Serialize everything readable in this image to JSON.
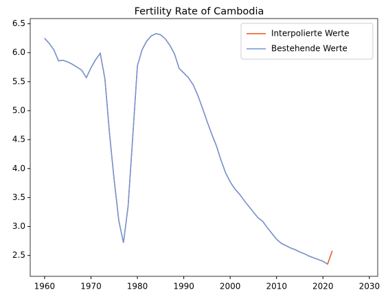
{
  "chart_data": {
    "type": "line",
    "title": "Fertility Rate of Cambodia",
    "x": [
      1960,
      1961,
      1962,
      1963,
      1964,
      1965,
      1966,
      1967,
      1968,
      1969,
      1970,
      1971,
      1972,
      1973,
      1974,
      1975,
      1976,
      1977,
      1978,
      1979,
      1980,
      1981,
      1982,
      1983,
      1984,
      1985,
      1986,
      1987,
      1988,
      1989,
      1990,
      1991,
      1992,
      1993,
      1994,
      1995,
      1996,
      1997,
      1998,
      1999,
      2000,
      2001,
      2002,
      2003,
      2004,
      2005,
      2006,
      2007,
      2008,
      2009,
      2010,
      2011,
      2012,
      2013,
      2014,
      2015,
      2016,
      2017,
      2018,
      2019,
      2020,
      2021,
      2022
    ],
    "series": [
      {
        "name": "Interpolierte Werte",
        "color": "#e8531f",
        "values": [
          6.25,
          6.16,
          6.05,
          5.86,
          5.87,
          5.84,
          5.8,
          5.75,
          5.7,
          5.57,
          5.74,
          5.88,
          5.99,
          5.55,
          4.6,
          3.8,
          3.1,
          2.72,
          3.35,
          4.55,
          5.77,
          6.05,
          6.2,
          6.29,
          6.33,
          6.31,
          6.24,
          6.13,
          5.98,
          5.73,
          5.65,
          5.57,
          5.45,
          5.27,
          5.05,
          4.82,
          4.6,
          4.4,
          4.15,
          3.93,
          3.77,
          3.65,
          3.56,
          3.45,
          3.35,
          3.25,
          3.15,
          3.09,
          2.98,
          2.88,
          2.78,
          2.71,
          2.67,
          2.63,
          2.6,
          2.56,
          2.53,
          2.49,
          2.46,
          2.43,
          2.4,
          2.35,
          2.58
        ]
      },
      {
        "name": "Bestehende Werte",
        "color": "#6f96dc",
        "values": [
          6.25,
          6.16,
          6.05,
          5.86,
          5.87,
          5.84,
          5.8,
          5.75,
          5.7,
          5.57,
          5.74,
          5.88,
          5.99,
          5.55,
          4.6,
          3.8,
          3.1,
          2.72,
          3.35,
          4.55,
          5.77,
          6.05,
          6.2,
          6.29,
          6.33,
          6.31,
          6.24,
          6.13,
          5.98,
          5.73,
          5.65,
          5.57,
          5.45,
          5.27,
          5.05,
          4.82,
          4.6,
          4.4,
          4.15,
          3.93,
          3.77,
          3.65,
          3.56,
          3.45,
          3.35,
          3.25,
          3.15,
          3.09,
          2.98,
          2.88,
          2.78,
          2.71,
          2.67,
          2.63,
          2.6,
          2.56,
          2.53,
          2.49,
          2.46,
          2.43,
          2.4,
          2.35,
          null
        ]
      }
    ],
    "xlim": [
      1956.9,
      2031.8
    ],
    "xticks": [
      1960,
      1970,
      1980,
      1990,
      2000,
      2010,
      2020,
      2030
    ],
    "ylim": [
      2.14,
      6.59
    ],
    "yticks": [
      2.5,
      3.0,
      3.5,
      4.0,
      4.5,
      5.0,
      5.5,
      6.0,
      6.5
    ],
    "legend": "upper right",
    "grid": false
  }
}
